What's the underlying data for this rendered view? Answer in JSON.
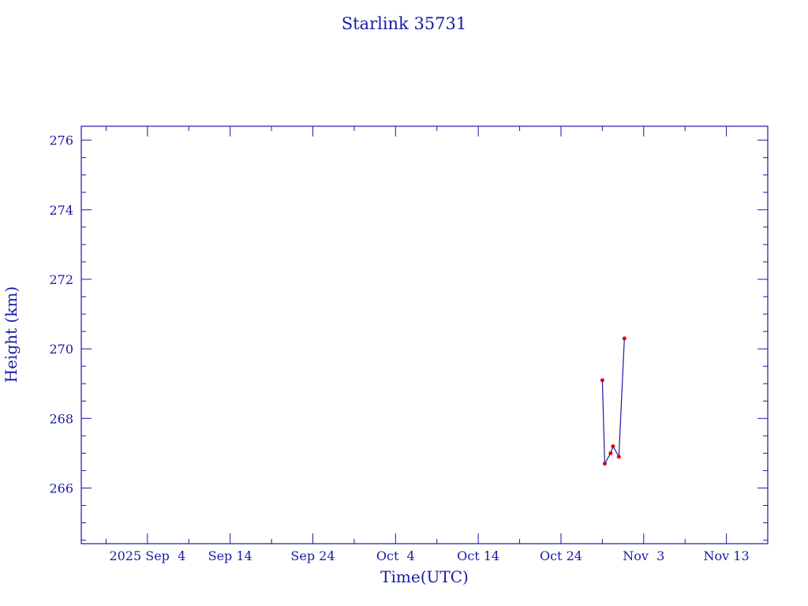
{
  "chart_data": {
    "type": "line",
    "title": "Starlink 35731",
    "xlabel": "Time(UTC)",
    "ylabel": "Height (km)",
    "xlim": [
      "2025-08-27",
      "2025-11-18"
    ],
    "ylim": [
      264.4,
      276.4
    ],
    "x_tick_labels": [
      "2025 Sep  4",
      "Sep 14",
      "Sep 24",
      "Oct  4",
      "Oct 14",
      "Oct 24",
      "Nov  3",
      "Nov 13"
    ],
    "x_tick_dates": [
      "2025-09-04",
      "2025-09-14",
      "2025-09-24",
      "2025-10-04",
      "2025-10-14",
      "2025-10-24",
      "2025-11-03",
      "2025-11-13"
    ],
    "y_tick_labels": [
      "266",
      "268",
      "270",
      "272",
      "274",
      "276"
    ],
    "y_ticks": [
      266,
      268,
      270,
      272,
      274,
      276
    ],
    "grid": false,
    "series": [
      {
        "x": [
          "2025-10-29T00:00",
          "2025-10-29T07:00",
          "2025-10-30T00:00",
          "2025-10-30T07:00",
          "2025-10-31T00:00",
          "2025-10-31T16:00"
        ],
        "y": [
          269.1,
          266.7,
          267.0,
          267.2,
          266.9,
          270.3
        ]
      }
    ],
    "colors": {
      "axes": "#1a1aa6",
      "line": "#1a1aa6",
      "marker": "#e00000"
    }
  }
}
